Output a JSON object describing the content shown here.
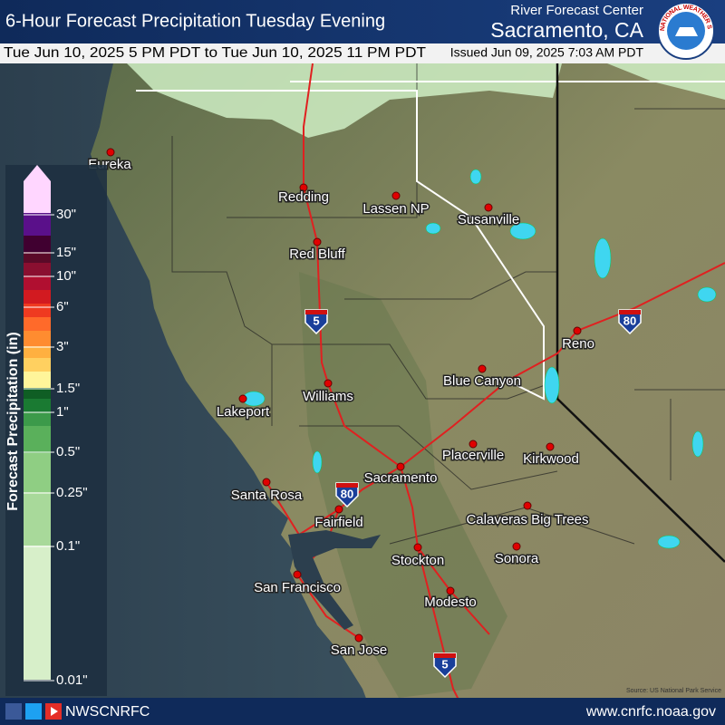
{
  "header": {
    "title": "6-Hour Forecast Precipitation Tuesday Evening",
    "office": "River Forecast Center",
    "location": "Sacramento, CA",
    "valid_period": "Tue Jun 10, 2025 5 PM PDT to Tue Jun 10, 2025 11 PM PDT",
    "issued": "Issued Jun 09, 2025 7:03 AM PDT",
    "logo_text": "NATIONAL WEATHER SERVICE"
  },
  "legend": {
    "title": "Forecast Precipitation (in)",
    "labels": [
      "30\"",
      "15\"",
      "10\"",
      "6\"",
      "3\"",
      "1.5\"",
      "1\"",
      "0.5\"",
      "0.25\"",
      "0.1\"",
      "0.01\""
    ]
  },
  "map": {
    "cities": [
      "Eureka",
      "Redding",
      "Lassen NP",
      "Susanville",
      "Red Bluff",
      "Reno",
      "Blue Canyon",
      "Williams",
      "Lakeport",
      "Placerville",
      "Kirkwood",
      "Sacramento",
      "Santa Rosa",
      "Fairfield",
      "Calaveras Big Trees",
      "Stockton",
      "Sonora",
      "San Francisco",
      "Modesto",
      "San Jose"
    ],
    "shields": [
      "5",
      "80",
      "80",
      "5"
    ],
    "source": "Source: US National Park Service"
  },
  "footer": {
    "handle": "NWSCNRFC",
    "url": "www.cnrfc.noaa.gov"
  }
}
